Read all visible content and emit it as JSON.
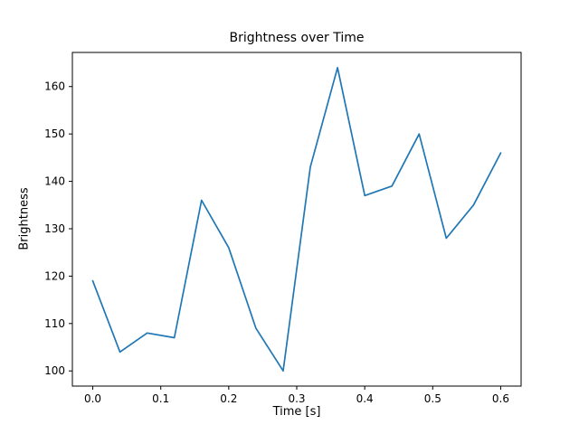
{
  "chart_data": {
    "type": "line",
    "title": "Brightness over Time",
    "xlabel": "Time [s]",
    "ylabel": "Brightness",
    "x": [
      0.0,
      0.04,
      0.08,
      0.12,
      0.16,
      0.2,
      0.24,
      0.28,
      0.32,
      0.36,
      0.4,
      0.44,
      0.48,
      0.52,
      0.56,
      0.6
    ],
    "y": [
      119,
      104,
      108,
      107,
      136,
      126,
      109,
      100,
      143,
      164,
      137,
      139,
      150,
      128,
      135,
      146
    ],
    "xticks": [
      0.0,
      0.1,
      0.2,
      0.3,
      0.4,
      0.5,
      0.6
    ],
    "yticks": [
      100,
      110,
      120,
      130,
      140,
      150,
      160
    ],
    "xlim": [
      -0.03,
      0.63
    ],
    "ylim": [
      96.8,
      167.2
    ],
    "line_color": "#1f77b4",
    "axis_color": "#000000",
    "grid": "off",
    "legend": "none"
  }
}
